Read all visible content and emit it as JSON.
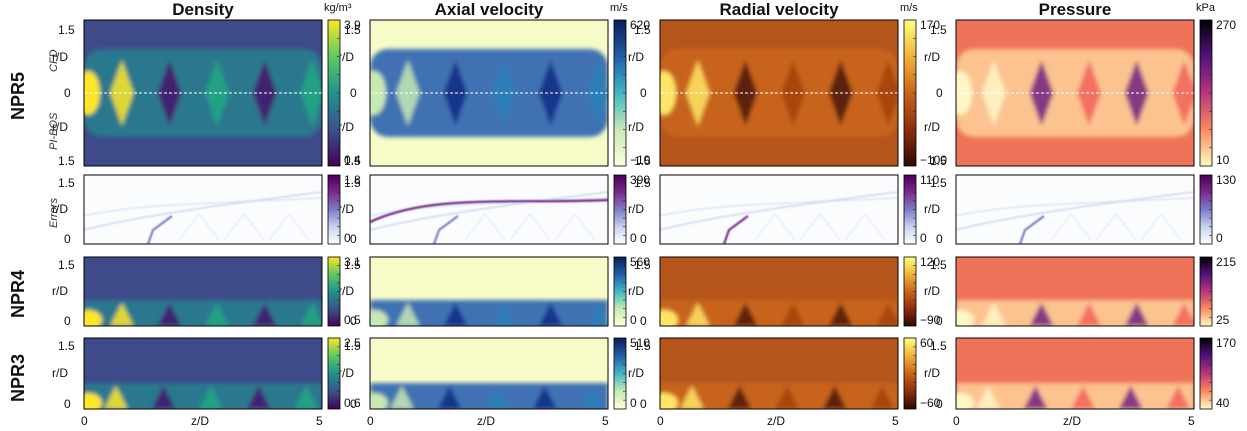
{
  "columns": [
    {
      "title": "Density",
      "unit": "kg/m³"
    },
    {
      "title": "Axial velocity",
      "unit": "m/s"
    },
    {
      "title": "Radial velocity",
      "unit": "m/s"
    },
    {
      "title": "Pressure",
      "unit": "kPa"
    }
  ],
  "rows": [
    {
      "label": "NPR5",
      "top_sub": "CFD",
      "bottom_sub": "PI-BOS",
      "scales": [
        [
          "3.9",
          "0.4"
        ],
        [
          "620",
          "−10"
        ],
        [
          "170",
          "−100"
        ],
        [
          "270",
          "10"
        ]
      ]
    },
    {
      "label": "",
      "sub": "Errors",
      "scales": [
        [
          "1.8",
          "0"
        ],
        [
          "390",
          "0"
        ],
        [
          "110",
          "0"
        ],
        [
          "130",
          "0"
        ]
      ]
    },
    {
      "label": "NPR4",
      "scales": [
        [
          "3.1",
          "0.5"
        ],
        [
          "560",
          "0"
        ],
        [
          "120",
          "−90"
        ],
        [
          "215",
          "25"
        ]
      ]
    },
    {
      "label": "NPR3",
      "scales": [
        [
          "2.5",
          "0.6"
        ],
        [
          "510",
          "0"
        ],
        [
          "60",
          "−60"
        ],
        [
          "170",
          "40"
        ]
      ]
    }
  ],
  "axes": {
    "y_label": "r/D",
    "y_ticks_top": [
      "1.5",
      "0",
      "1.5"
    ],
    "y_ticks_small": [
      "1.5",
      "0"
    ],
    "x_label": "z/D",
    "x_ticks": [
      "0",
      "5"
    ]
  },
  "colors": {
    "viridis": [
      "#440154",
      "#3b528b",
      "#21918c",
      "#5ec962",
      "#fde725"
    ],
    "ylgnbu": [
      "#ffffd9",
      "#c7e9b4",
      "#41b6c4",
      "#225ea8",
      "#081d58"
    ],
    "afmhot": [
      "#2b0a05",
      "#8b2f0e",
      "#c8641a",
      "#f0b43a",
      "#ffff80"
    ],
    "magma_r": [
      "#fcfdbf",
      "#fc8961",
      "#b73779",
      "#51127c",
      "#000004"
    ],
    "errors": [
      "#ffffff",
      "#c6d3ee",
      "#7e7bc8",
      "#7a2a8c",
      "#4b0055"
    ]
  }
}
